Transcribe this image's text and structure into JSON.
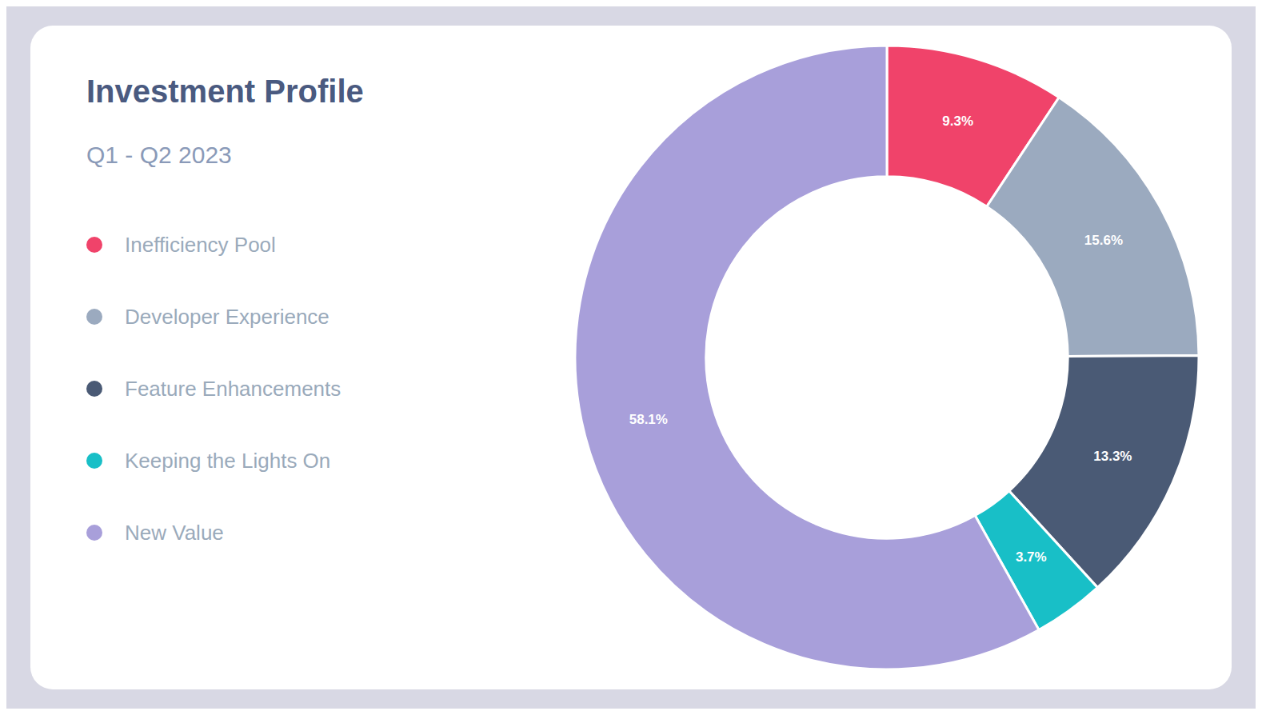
{
  "chart_data": {
    "type": "pie",
    "title": "Investment Profile",
    "subtitle": "Q1 - Q2 2023",
    "categories": [
      "Inefficiency Pool",
      "Developer Experience",
      "Feature Enhancements",
      "Keeping the Lights On",
      "New Value"
    ],
    "values": [
      9.3,
      15.6,
      13.3,
      3.7,
      58.1
    ],
    "value_labels": [
      "9.3%",
      "15.6%",
      "13.3%",
      "3.7%",
      "58.1%"
    ],
    "colors": [
      "#F0436A",
      "#9BAABF",
      "#4A5A75",
      "#18BFC7",
      "#A89FDA"
    ],
    "data_labels": true,
    "legend": "left"
  }
}
